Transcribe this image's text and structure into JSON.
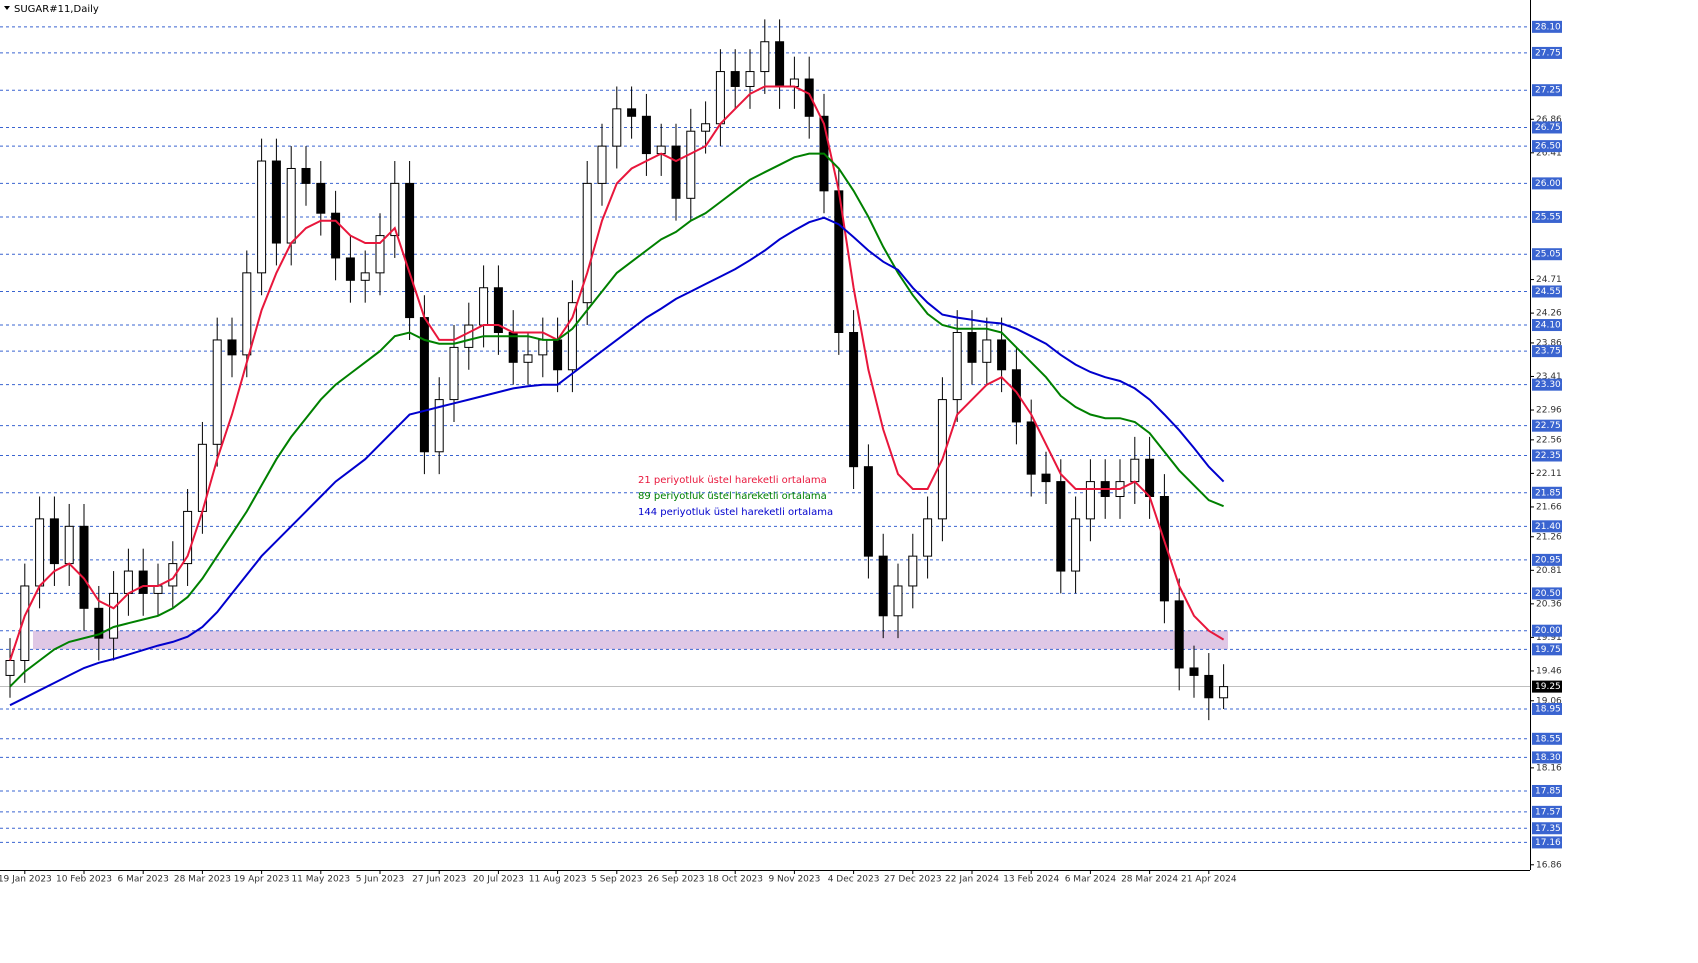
{
  "chart_data": {
    "type": "candlestick",
    "title": "SUGAR#11,Daily",
    "categories": [
      null,
      "19 Jan 2023",
      null,
      null,
      null,
      "10 Feb 2023",
      null,
      null,
      null,
      "6 Mar 2023",
      null,
      null,
      null,
      "28 Mar 2023",
      null,
      null,
      null,
      "19 Apr 2023",
      null,
      null,
      null,
      "11 May 2023",
      null,
      null,
      null,
      "5 Jun 2023",
      null,
      null,
      null,
      "27 Jun 2023",
      null,
      null,
      null,
      "20 Jul 2023",
      null,
      null,
      null,
      "11 Aug 2023",
      null,
      null,
      null,
      "5 Sep 2023",
      null,
      null,
      null,
      "26 Sep 2023",
      null,
      null,
      null,
      "18 Oct 2023",
      null,
      null,
      null,
      "9 Nov 2023",
      null,
      null,
      null,
      "4 Dec 2023",
      null,
      null,
      null,
      "27 Dec 2023",
      null,
      null,
      null,
      "22 Jan 2024",
      null,
      null,
      null,
      "13 Feb 2024",
      null,
      null,
      null,
      "6 Mar 2024",
      null,
      null,
      null,
      "28 Mar 2024",
      null,
      null,
      null,
      "21 Apr 2024",
      null
    ],
    "candles": {
      "open": [
        19.4,
        19.6,
        20.6,
        21.5,
        20.9,
        21.4,
        20.3,
        19.9,
        20.5,
        20.8,
        20.5,
        20.6,
        20.9,
        21.6,
        22.5,
        23.9,
        23.7,
        24.8,
        26.3,
        25.2,
        26.2,
        26.0,
        25.6,
        25.0,
        24.7,
        24.8,
        25.3,
        26.0,
        24.2,
        22.4,
        23.1,
        23.8,
        24.1,
        24.6,
        24.0,
        23.6,
        23.7,
        23.9,
        23.5,
        24.4,
        26.0,
        26.5,
        27.0,
        26.9,
        26.4,
        26.5,
        25.8,
        26.7,
        26.8,
        27.5,
        27.3,
        27.5,
        27.9,
        27.3,
        27.4,
        26.9,
        25.9,
        24.0,
        22.2,
        21.0,
        20.2,
        20.6,
        21.0,
        21.5,
        23.1,
        24.0,
        23.6,
        23.9,
        23.5,
        22.8,
        22.1,
        22.0,
        20.8,
        21.5,
        22.0,
        21.8,
        22.0,
        22.3,
        21.8,
        20.4,
        19.5,
        19.4,
        19.1
      ],
      "high": [
        19.9,
        20.9,
        21.8,
        21.8,
        21.7,
        21.7,
        20.6,
        20.8,
        21.1,
        21.1,
        20.9,
        21.2,
        21.9,
        22.8,
        24.2,
        24.2,
        25.1,
        26.6,
        26.6,
        26.5,
        26.5,
        26.3,
        25.9,
        25.3,
        25.1,
        25.6,
        26.3,
        26.3,
        24.5,
        23.4,
        24.1,
        24.4,
        24.9,
        24.9,
        24.3,
        24.0,
        24.2,
        24.2,
        24.7,
        26.3,
        26.8,
        27.3,
        27.3,
        27.2,
        26.8,
        26.8,
        27.0,
        27.1,
        27.8,
        27.8,
        27.8,
        28.2,
        28.2,
        27.7,
        27.7,
        27.2,
        26.2,
        24.3,
        22.5,
        21.3,
        20.9,
        21.3,
        21.8,
        23.4,
        24.3,
        24.3,
        24.2,
        24.2,
        23.8,
        23.1,
        22.4,
        22.3,
        21.8,
        22.3,
        22.3,
        22.3,
        22.6,
        22.6,
        22.1,
        20.7,
        19.8,
        19.7,
        19.55
      ],
      "low": [
        19.1,
        19.3,
        20.3,
        20.6,
        20.6,
        20.0,
        19.6,
        19.6,
        20.2,
        20.2,
        20.2,
        20.3,
        20.6,
        21.3,
        22.2,
        23.4,
        23.4,
        24.5,
        24.9,
        24.9,
        25.7,
        25.3,
        24.7,
        24.4,
        24.4,
        24.5,
        25.0,
        23.9,
        22.1,
        22.1,
        22.8,
        23.5,
        23.8,
        23.7,
        23.3,
        23.3,
        23.4,
        23.2,
        23.2,
        24.1,
        25.7,
        26.2,
        26.6,
        26.1,
        26.1,
        25.5,
        25.5,
        26.4,
        26.5,
        27.0,
        27.0,
        27.2,
        27.0,
        27.0,
        26.6,
        25.6,
        23.7,
        21.9,
        20.7,
        19.9,
        19.9,
        20.3,
        20.7,
        21.2,
        22.8,
        23.3,
        23.3,
        23.2,
        22.5,
        21.8,
        21.7,
        20.5,
        20.5,
        21.2,
        21.5,
        21.5,
        21.7,
        21.5,
        20.1,
        19.2,
        19.1,
        18.8,
        18.95
      ],
      "close": [
        19.6,
        20.6,
        21.5,
        20.9,
        21.4,
        20.3,
        19.9,
        20.5,
        20.8,
        20.5,
        20.6,
        20.9,
        21.6,
        22.5,
        23.9,
        23.7,
        24.8,
        26.3,
        25.2,
        26.2,
        26.0,
        25.6,
        25.0,
        24.7,
        24.8,
        25.3,
        26.0,
        24.2,
        22.4,
        23.1,
        23.8,
        24.1,
        24.6,
        24.0,
        23.6,
        23.7,
        23.9,
        23.5,
        24.4,
        26.0,
        26.5,
        27.0,
        26.9,
        26.4,
        26.5,
        25.8,
        26.7,
        26.8,
        27.5,
        27.3,
        27.5,
        27.9,
        27.3,
        27.4,
        26.9,
        25.9,
        24.0,
        22.2,
        21.0,
        20.2,
        20.6,
        21.0,
        21.5,
        23.1,
        24.0,
        23.6,
        23.9,
        23.5,
        22.8,
        22.1,
        22.0,
        20.8,
        21.5,
        22.0,
        21.8,
        22.0,
        22.3,
        21.8,
        20.4,
        19.5,
        19.4,
        19.1,
        19.25
      ]
    },
    "series": [
      {
        "name": "21 periyotluk üstel hareketli ortalama",
        "color": "#e8173c",
        "values": [
          19.6,
          20.2,
          20.6,
          20.8,
          20.9,
          20.7,
          20.4,
          20.3,
          20.5,
          20.6,
          20.6,
          20.7,
          21.0,
          21.6,
          22.3,
          22.9,
          23.6,
          24.3,
          24.8,
          25.2,
          25.4,
          25.5,
          25.5,
          25.3,
          25.2,
          25.2,
          25.4,
          24.8,
          24.2,
          23.9,
          23.9,
          24.0,
          24.1,
          24.1,
          24.0,
          24.0,
          24.0,
          23.9,
          24.2,
          24.8,
          25.5,
          26.0,
          26.2,
          26.3,
          26.4,
          26.3,
          26.4,
          26.5,
          26.8,
          27.0,
          27.2,
          27.3,
          27.3,
          27.3,
          27.2,
          26.8,
          25.9,
          24.6,
          23.5,
          22.7,
          22.1,
          21.9,
          21.9,
          22.3,
          22.9,
          23.1,
          23.3,
          23.4,
          23.2,
          22.9,
          22.5,
          22.1,
          21.9,
          21.9,
          21.9,
          21.9,
          22.0,
          21.8,
          21.2,
          20.6,
          20.2,
          20.0,
          19.88
        ]
      },
      {
        "name": "89 periyotluk üstel hareketli ortalama",
        "color": "#008000",
        "values": [
          19.25,
          19.45,
          19.6,
          19.75,
          19.85,
          19.9,
          19.95,
          20.05,
          20.1,
          20.15,
          20.2,
          20.3,
          20.45,
          20.7,
          21.0,
          21.3,
          21.6,
          21.95,
          22.3,
          22.6,
          22.85,
          23.1,
          23.3,
          23.45,
          23.6,
          23.75,
          23.95,
          24.0,
          23.9,
          23.85,
          23.85,
          23.9,
          23.95,
          23.95,
          23.95,
          23.95,
          23.9,
          23.9,
          24.05,
          24.3,
          24.55,
          24.8,
          24.95,
          25.1,
          25.25,
          25.35,
          25.5,
          25.6,
          25.75,
          25.9,
          26.05,
          26.15,
          26.25,
          26.35,
          26.4,
          26.4,
          26.2,
          25.9,
          25.55,
          25.15,
          24.8,
          24.5,
          24.25,
          24.1,
          24.05,
          24.05,
          24.05,
          24.0,
          23.8,
          23.6,
          23.4,
          23.15,
          23.0,
          22.9,
          22.85,
          22.85,
          22.8,
          22.65,
          22.4,
          22.15,
          21.95,
          21.75,
          21.67
        ]
      },
      {
        "name": "144 periyotluk üstel hareketli ortalama",
        "color": "#0000cd",
        "values": [
          19.0,
          19.1,
          19.2,
          19.3,
          19.4,
          19.5,
          19.57,
          19.62,
          19.68,
          19.74,
          19.8,
          19.85,
          19.92,
          20.05,
          20.25,
          20.5,
          20.75,
          21.0,
          21.2,
          21.4,
          21.6,
          21.8,
          22.0,
          22.15,
          22.3,
          22.5,
          22.7,
          22.9,
          22.95,
          23.0,
          23.05,
          23.1,
          23.15,
          23.2,
          23.25,
          23.28,
          23.3,
          23.3,
          23.45,
          23.6,
          23.75,
          23.9,
          24.05,
          24.2,
          24.32,
          24.45,
          24.55,
          24.65,
          24.75,
          24.85,
          24.97,
          25.1,
          25.25,
          25.37,
          25.48,
          25.54,
          25.45,
          25.28,
          25.1,
          24.95,
          24.84,
          24.6,
          24.4,
          24.24,
          24.2,
          24.17,
          24.14,
          24.12,
          24.05,
          23.95,
          23.85,
          23.7,
          23.57,
          23.47,
          23.4,
          23.35,
          23.25,
          23.1,
          22.9,
          22.69,
          22.45,
          22.2,
          22.0
        ]
      }
    ],
    "ylim": [
      16.79,
      28.46
    ],
    "yticks": [
      26.86,
      26.41,
      24.71,
      24.26,
      23.86,
      23.41,
      22.96,
      22.56,
      22.11,
      21.66,
      21.26,
      20.81,
      20.36,
      19.91,
      19.46,
      19.06,
      18.16,
      16.86
    ],
    "levels": [
      {
        "value": 28.1,
        "label": "28.10"
      },
      27.75,
      27.25,
      26.75,
      {
        "value": 26.5,
        "label": "26.50"
      },
      {
        "value": 26,
        "label": "26.00"
      },
      25.55,
      25.05,
      24.55,
      {
        "value": 24.1,
        "label": "24.10"
      },
      23.75,
      {
        "value": 23.3,
        "label": "23.30"
      },
      22.75,
      22.35,
      21.85,
      {
        "value": 21.4,
        "label": "21.40"
      },
      20.95,
      {
        "value": 20.5,
        "label": "20.50"
      },
      {
        "value": 20,
        "label": "20.00"
      },
      19.75,
      18.95,
      18.55,
      {
        "value": 18.3,
        "label": "18.30"
      },
      17.85,
      17.57,
      17.35,
      17.16
    ],
    "level_color": "#3a64d0",
    "last_price": 19.25,
    "zone": [
      19.75,
      20.0
    ],
    "zone_color": "#d9bde0"
  }
}
